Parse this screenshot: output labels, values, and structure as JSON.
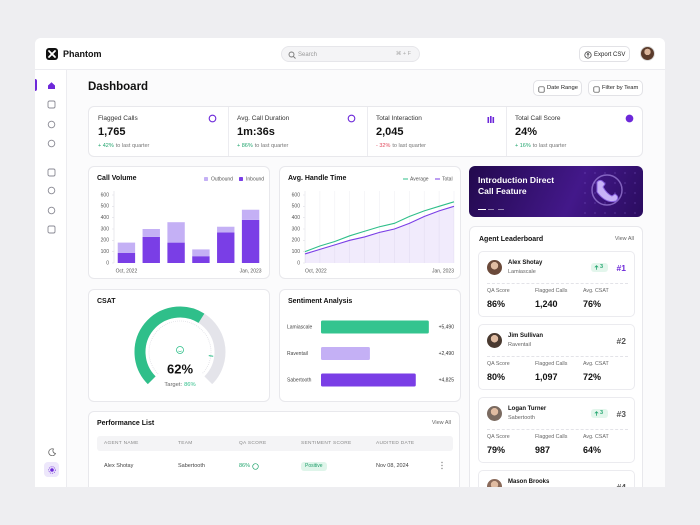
{
  "header": {
    "brand": "Phantom",
    "search_placeholder": "Search",
    "search_shortcut": "⌘ + F",
    "export_button": "Export CSV"
  },
  "page": {
    "title": "Dashboard",
    "date_range_button": "Date Range",
    "filter_button": "Filter by Team"
  },
  "stats": [
    {
      "label": "Flagged Calls",
      "value": "1,765",
      "change": "+ 42%",
      "change_note": "to last quarter"
    },
    {
      "label": "Avg. Call Duration",
      "value": "1m:36s",
      "change": "+ 86%",
      "change_note": "to last quarter"
    },
    {
      "label": "Total Interaction",
      "value": "2,045",
      "change": "- 32%",
      "change_note": "to last quarter"
    },
    {
      "label": "Total Call Score",
      "value": "24%",
      "change": "+ 16%",
      "change_note": "to last quarter"
    }
  ],
  "chart_data": [
    {
      "type": "bar",
      "stacked": true,
      "title": "Call Volume",
      "categories": [
        "Oct, 2022",
        null,
        null,
        null,
        null,
        "Jan, 2023"
      ],
      "series": [
        {
          "name": "Outbound",
          "color": "#c4b0f5",
          "values": [
            90,
            70,
            180,
            60,
            50,
            90
          ]
        },
        {
          "name": "Inbound",
          "color": "#7a3ee6",
          "values": [
            90,
            230,
            180,
            60,
            270,
            380
          ]
        }
      ],
      "ylim": [
        0,
        600
      ],
      "yticks": [
        0,
        100,
        200,
        300,
        400,
        500,
        600
      ],
      "legend": "top-right"
    },
    {
      "type": "line",
      "title": "Avg. Handle Time",
      "categories": [
        "Oct, 2022",
        null,
        null,
        null,
        null,
        null,
        null,
        null,
        null,
        null,
        "Jan, 2023"
      ],
      "series": [
        {
          "name": "Average",
          "color": "#2fbf8a",
          "values": [
            100,
            150,
            190,
            240,
            280,
            320,
            350,
            410,
            460,
            500,
            540
          ]
        },
        {
          "name": "Total",
          "color": "#7a3ee6",
          "area": true,
          "values": [
            80,
            120,
            160,
            200,
            230,
            270,
            300,
            350,
            410,
            460,
            500
          ]
        }
      ],
      "ylim": [
        0,
        600
      ],
      "yticks": [
        0,
        100,
        200,
        300,
        400,
        500,
        600
      ],
      "grid": "vertical",
      "legend": "top-right"
    },
    {
      "type": "gauge",
      "title": "CSAT",
      "value": 62,
      "value_label": "62%",
      "ylim": [
        0,
        100
      ],
      "color": "#2fbf8a",
      "track_color": "#e4e4ea",
      "target_text": "Target:",
      "target": 86,
      "target_label": "86%"
    },
    {
      "type": "bar",
      "orientation": "horizontal",
      "title": "Sentiment Analysis",
      "categories": [
        "Lamiascale",
        "Raventail",
        "Sabertooth"
      ],
      "values": [
        5490,
        2490,
        4825
      ],
      "value_labels": [
        "+5,490",
        "+2,490",
        "+4,825"
      ],
      "colors": [
        "#34c48f",
        "#c4b0f5",
        "#7a3ee6"
      ],
      "xlim": [
        0,
        5600
      ]
    }
  ],
  "promo": {
    "title": "Introduction Direct Call Feature"
  },
  "leaderboard": {
    "title": "Agent Leaderboard",
    "view_all": "View All",
    "agents": [
      {
        "name": "Alex Shotay",
        "team": "Lamiascale",
        "rank_change": "3",
        "rank": "#1",
        "metrics": [
          {
            "label": "QA Score",
            "value": "86%"
          },
          {
            "label": "Flagged Calls",
            "value": "1,240"
          },
          {
            "label": "Avg. CSAT",
            "value": "76%"
          }
        ]
      },
      {
        "name": "Jim Sullivan",
        "team": "Raventail",
        "rank": "#2",
        "metrics": [
          {
            "label": "QA Score",
            "value": "80%"
          },
          {
            "label": "Flagged Calls",
            "value": "1,097"
          },
          {
            "label": "Avg. CSAT",
            "value": "72%"
          }
        ]
      },
      {
        "name": "Logan Turner",
        "team": "Sabertooth",
        "rank_change": "3",
        "rank": "#3",
        "metrics": [
          {
            "label": "QA Score",
            "value": "79%"
          },
          {
            "label": "Flagged Calls",
            "value": "987"
          },
          {
            "label": "Avg. CSAT",
            "value": "64%"
          }
        ]
      },
      {
        "name": "Mason Brooks",
        "rank": "#4"
      }
    ]
  },
  "performance_list": {
    "title": "Performance List",
    "view_all": "View All",
    "columns": [
      "AGENT NAME",
      "TEAM",
      "QA SCORE",
      "SENTIMENT SCORE",
      "AUDITED DATE"
    ],
    "rows": [
      [
        "Alex Shotay",
        "Sabertooth",
        "86%",
        "Positive",
        "Nov 08, 2024"
      ]
    ]
  }
}
